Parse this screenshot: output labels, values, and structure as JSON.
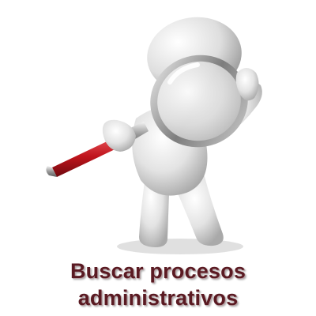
{
  "caption": {
    "line1": "Buscar procesos",
    "line2": "administrativos"
  },
  "icons": {
    "figure": "person-with-magnifying-glass-icon"
  },
  "colors": {
    "caption_text": "#5a1a22",
    "figure_body": "#e6e6e6",
    "handle_red": "#c0141c",
    "lens_rim": "#8a8a8a"
  }
}
